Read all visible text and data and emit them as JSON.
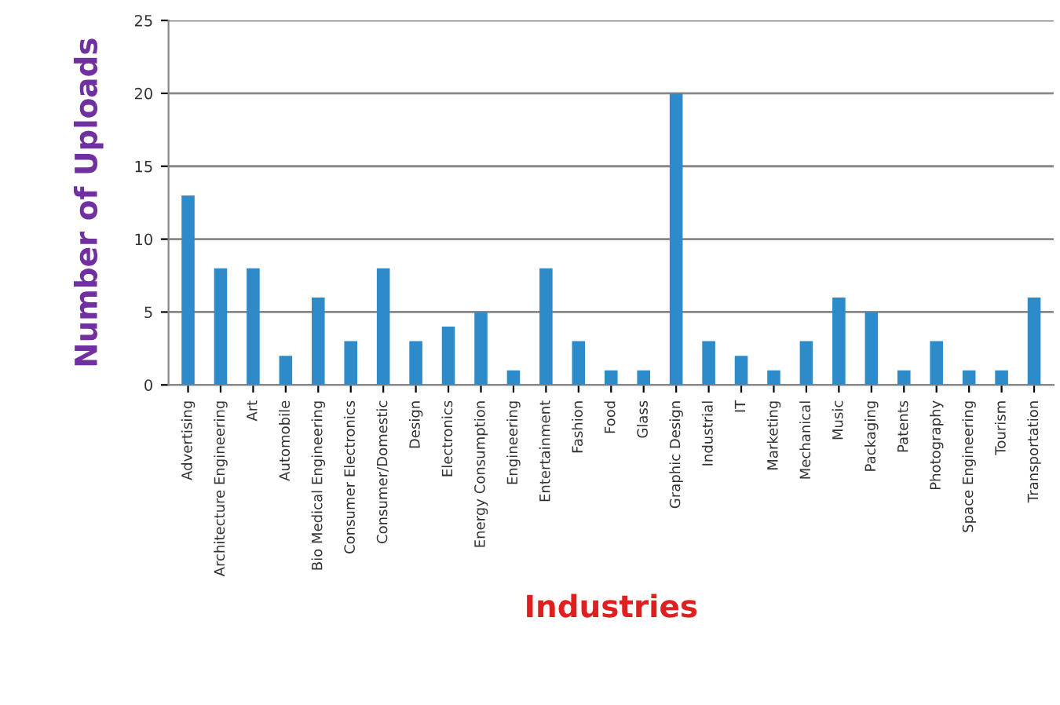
{
  "chart_data": {
    "type": "bar",
    "xlabel": "Industries",
    "ylabel": "Number of Uploads",
    "categories": [
      "Advertising",
      "Architecture Engineering",
      "Art",
      "Automobile",
      "Bio Medical Engineering",
      "Consumer Electronics",
      "Consumer/Domestic",
      "Design",
      "Electronics",
      "Energy Consumption",
      "Engineering",
      "Entertainment",
      "Fashion",
      "Food",
      "Glass",
      "Graphic Design",
      "Industrial",
      "IT",
      "Marketing",
      "Mechanical",
      "Music",
      "Packaging",
      "Patents",
      "Photography",
      "Space Engineering",
      "Tourism",
      "Transportation"
    ],
    "values": [
      13,
      8,
      8,
      2,
      6,
      3,
      8,
      3,
      4,
      5,
      1,
      8,
      3,
      1,
      1,
      20,
      3,
      2,
      1,
      3,
      6,
      5,
      1,
      3,
      1,
      1,
      6
    ],
    "color": "#2e8bc9",
    "ylim": [
      0,
      25
    ],
    "yticks": [
      0,
      5,
      10,
      15,
      20,
      25
    ],
    "grid": "y",
    "legend": false
  }
}
